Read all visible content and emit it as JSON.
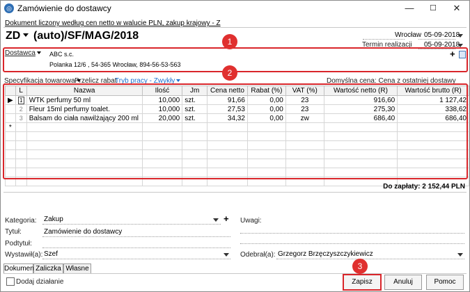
{
  "window": {
    "title": "Zamówienie do dostawcy",
    "minimize": "—",
    "maximize": "☐",
    "close": "✕"
  },
  "doc_info": "Dokument liczony według cen netto w walucie PLN, zakup krajowy - Z",
  "doc_type": "ZD",
  "doc_number": "(auto)/SF/MAG/2018",
  "place": "Wrocław",
  "date": "05-09-2018",
  "delivery_label": "Termin realizacji",
  "delivery_date": "05-09-2018",
  "supplier": {
    "label": "Dostawca",
    "name": "ABC s.c.",
    "address": "Polanka 12/6 , 54-365 Wrocław, 894-56-53-563"
  },
  "toolbar": {
    "spec": "Specyfikacja towarowa",
    "recalc": "Przelicz rabat",
    "mode": "Tryb pracy - Zwykły",
    "default_price": "Domyślna cena: Cena z ostatniej dostawy"
  },
  "table": {
    "headers": [
      "L",
      "Nazwa",
      "Ilość",
      "Jm",
      "Cena netto",
      "Rabat (%)",
      "VAT (%)",
      "Wartość netto (R)",
      "Wartość brutto (R)"
    ],
    "rows": [
      {
        "num": "1",
        "name": "WTK perfumy 50 ml",
        "qty": "10,000",
        "unit": "szt.",
        "price": "91,66",
        "discount": "0,00",
        "vat": "23",
        "net": "916,60",
        "gross": "1 127,42"
      },
      {
        "num": "2",
        "name": "Fleur 15ml perfumy toalet.",
        "qty": "10,000",
        "unit": "szt.",
        "price": "27,53",
        "discount": "0,00",
        "vat": "23",
        "net": "275,30",
        "gross": "338,62"
      },
      {
        "num": "3",
        "name": "Balsam do ciała nawilżający 200 ml",
        "qty": "20,000",
        "unit": "szt.",
        "price": "34,32",
        "discount": "0,00",
        "vat": "zw",
        "net": "686,40",
        "gross": "686,40"
      }
    ],
    "new_row_marker": "*"
  },
  "total": "Do zapłaty: 2 152,44 PLN",
  "form": {
    "category_label": "Kategoria:",
    "category_value": "Zakup",
    "title_label": "Tytuł:",
    "title_value": "Zamówienie do dostawcy",
    "subtitle_label": "Podtytuł:",
    "subtitle_value": "",
    "issued_label": "Wystawił(a):",
    "issued_value": "Szef",
    "notes_label": "Uwagi:",
    "notes_value": "",
    "received_label": "Odebrał(a):",
    "received_value": "Grzegorz Brzęczyszczykiewicz"
  },
  "tabs": [
    "Dokument",
    "Zaliczka",
    "Własne"
  ],
  "add_action": "Dodaj działanie",
  "buttons": {
    "save": "Zapisz",
    "cancel": "Anuluj",
    "help": "Pomoc"
  },
  "badges": [
    "1",
    "2",
    "3"
  ],
  "colors": {
    "highlight": "#d9252a",
    "badge": "#e0302f",
    "link": "#1a6fd0"
  }
}
